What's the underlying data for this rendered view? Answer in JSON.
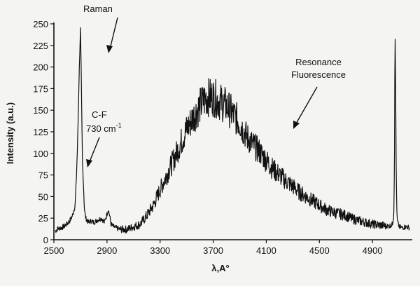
{
  "chart_data": {
    "type": "line",
    "title": "",
    "xlabel": "λ,A°",
    "ylabel": "Intensity (a.u.)",
    "xlim": [
      2500,
      5200
    ],
    "ylim": [
      0,
      250
    ],
    "grid": false,
    "x_ticks": [
      2500,
      2900,
      3300,
      3700,
      4100,
      4500,
      4900
    ],
    "y_ticks": [
      0,
      25,
      50,
      75,
      100,
      125,
      150,
      175,
      200,
      225,
      250
    ],
    "series": [
      {
        "x": [
          2510,
          2530,
          2560,
          2590,
          2620,
          2640,
          2660,
          2670,
          2680,
          2690,
          2700,
          2705,
          2710,
          2715,
          2720,
          2725,
          2730,
          2740,
          2760,
          2780,
          2800,
          2830,
          2860,
          2880,
          2900,
          2910,
          2920,
          2930,
          2950,
          2980,
          3000,
          3050,
          3100,
          3150,
          3200,
          3250,
          3300,
          3350,
          3400,
          3450,
          3500,
          3550,
          3600,
          3650,
          3700,
          3750,
          3800,
          3850,
          3900,
          3950,
          4000,
          4050,
          4100,
          4150,
          4200,
          4250,
          4300,
          4350,
          4400,
          4450,
          4500,
          4550,
          4600,
          4650,
          4700,
          4750,
          4800,
          4850,
          4900,
          4950,
          5000,
          5030,
          5050,
          5060,
          5065,
          5070,
          5075,
          5080,
          5085,
          5090,
          5095,
          5100,
          5120,
          5150,
          5180
        ],
        "y": [
          10,
          13,
          14,
          17,
          22,
          28,
          40,
          75,
          120,
          190,
          245,
          200,
          140,
          90,
          75,
          55,
          35,
          25,
          20,
          22,
          20,
          23,
          25,
          20,
          30,
          35,
          28,
          18,
          15,
          13,
          12,
          12,
          15,
          18,
          28,
          40,
          58,
          75,
          92,
          110,
          128,
          142,
          155,
          165,
          165,
          160,
          155,
          145,
          135,
          120,
          110,
          102,
          92,
          82,
          75,
          68,
          62,
          55,
          50,
          45,
          40,
          35,
          32,
          30,
          28,
          24,
          22,
          20,
          18,
          17,
          16,
          16,
          18,
          28,
          80,
          245,
          170,
          60,
          25,
          20,
          18,
          15,
          14,
          15,
          14
        ]
      }
    ],
    "annotations": {
      "raman": "Raman",
      "cf_line1": "C-F",
      "cf_line2": "730 cm",
      "cf_sup": "-1",
      "resonance_line1": "Resonance",
      "resonance_line2": "Fluorescence"
    }
  }
}
